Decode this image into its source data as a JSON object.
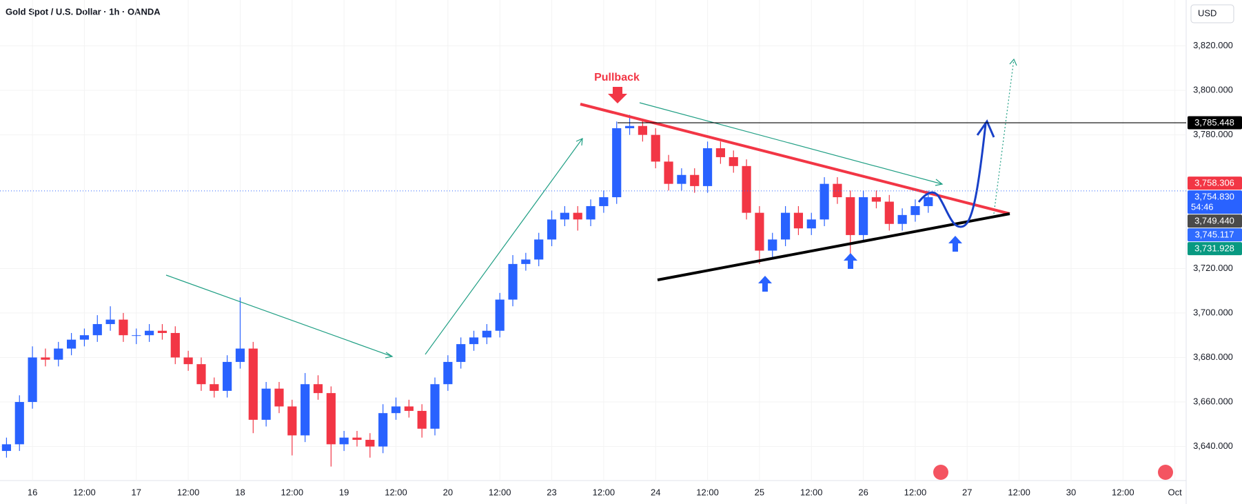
{
  "header": {
    "title": "Gold Spot / U.S. Dollar · 1h · OANDA",
    "currency": "USD"
  },
  "chart_data": {
    "type": "candlestick",
    "annotation": "Pullback",
    "countdown": "54:46",
    "up_color": "#2962ff",
    "down_color": "#f23645",
    "x": [
      -6,
      -3,
      0,
      3,
      6,
      9,
      12,
      15,
      18,
      21,
      24,
      27,
      30,
      33,
      36,
      39,
      42,
      45,
      48,
      51,
      54,
      57,
      60,
      63,
      66,
      69,
      72,
      75,
      78,
      81,
      84,
      87,
      90,
      93,
      96,
      99,
      102,
      105,
      108,
      111,
      114,
      117,
      120,
      123,
      126,
      129,
      132,
      135,
      138,
      141,
      144,
      147,
      150,
      153,
      156,
      159,
      162,
      165,
      168,
      171,
      174,
      177,
      180,
      183,
      186,
      189,
      192,
      195,
      198,
      201,
      204,
      207
    ],
    "open": [
      3638,
      3641,
      3660,
      3680,
      3679,
      3684,
      3688,
      3690,
      3695,
      3697,
      3690,
      3690,
      3692,
      3691,
      3680,
      3677,
      3668,
      3665,
      3678,
      3684,
      3652,
      3666,
      3658,
      3645,
      3668,
      3664,
      3641,
      3644,
      3643,
      3640,
      3655,
      3658,
      3656,
      3648,
      3668,
      3678,
      3686,
      3689,
      3692,
      3706,
      3722,
      3724,
      3733,
      3742,
      3745,
      3742,
      3748,
      3752,
      3783,
      3784,
      3780,
      3768,
      3758,
      3762,
      3757,
      3774,
      3770,
      3766,
      3745,
      3728,
      3733,
      3745,
      3738,
      3742,
      3758,
      3752,
      3735,
      3752,
      3750,
      3740,
      3744,
      3748
    ],
    "high": [
      3644,
      3663,
      3685,
      3684,
      3687,
      3691,
      3693,
      3699,
      3703,
      3700,
      3693,
      3695,
      3695,
      3694,
      3683,
      3680,
      3671,
      3681,
      3707,
      3687,
      3669,
      3669,
      3661,
      3673,
      3672,
      3667,
      3647,
      3647,
      3646,
      3659,
      3662,
      3661,
      3659,
      3671,
      3681,
      3689,
      3692,
      3695,
      3709,
      3726,
      3727,
      3736,
      3746,
      3748,
      3748,
      3751,
      3755,
      3786,
      3789,
      3787,
      3783,
      3771,
      3765,
      3765,
      3777,
      3777,
      3773,
      3769,
      3748,
      3736,
      3748,
      3748,
      3745,
      3761,
      3761,
      3755,
      3755,
      3755,
      3753,
      3747,
      3751,
      3755
    ],
    "low": [
      3635,
      3638,
      3657,
      3676,
      3676,
      3681,
      3685,
      3687,
      3692,
      3687,
      3686,
      3687,
      3688,
      3677,
      3674,
      3665,
      3662,
      3662,
      3675,
      3646,
      3649,
      3655,
      3636,
      3642,
      3661,
      3631,
      3638,
      3640,
      3635,
      3637,
      3652,
      3653,
      3644,
      3645,
      3665,
      3675,
      3683,
      3686,
      3689,
      3703,
      3719,
      3721,
      3730,
      3739,
      3737,
      3739,
      3745,
      3749,
      3780,
      3777,
      3765,
      3755,
      3755,
      3754,
      3754,
      3767,
      3763,
      3742,
      3722,
      3725,
      3730,
      3735,
      3735,
      3739,
      3749,
      3726,
      3732,
      3747,
      3737,
      3737,
      3741,
      3745
    ],
    "close": [
      3641,
      3660,
      3680,
      3679,
      3684,
      3688,
      3690,
      3695,
      3697,
      3690,
      3690,
      3692,
      3691,
      3680,
      3677,
      3668,
      3665,
      3678,
      3684,
      3652,
      3666,
      3658,
      3645,
      3668,
      3664,
      3641,
      3644,
      3643,
      3640,
      3655,
      3658,
      3656,
      3648,
      3668,
      3678,
      3686,
      3689,
      3692,
      3706,
      3722,
      3724,
      3733,
      3742,
      3745,
      3742,
      3748,
      3752,
      3783,
      3784,
      3780,
      3768,
      3758,
      3762,
      3757,
      3774,
      3770,
      3766,
      3745,
      3728,
      3733,
      3745,
      3738,
      3742,
      3758,
      3752,
      3735,
      3752,
      3750,
      3740,
      3744,
      3748,
      3752
    ],
    "xlim": [
      -7.5,
      266.6
    ],
    "ylim": [
      3624.7,
      3840.6
    ],
    "xticks": [
      {
        "value": 0,
        "label": "16"
      },
      {
        "value": 12,
        "label": "12:00"
      },
      {
        "value": 24,
        "label": "17"
      },
      {
        "value": 36,
        "label": "12:00"
      },
      {
        "value": 48,
        "label": "18"
      },
      {
        "value": 60,
        "label": "12:00"
      },
      {
        "value": 72,
        "label": "19"
      },
      {
        "value": 84,
        "label": "12:00"
      },
      {
        "value": 96,
        "label": "20"
      },
      {
        "value": 108,
        "label": "12:00"
      },
      {
        "value": 120,
        "label": "23"
      },
      {
        "value": 132,
        "label": "12:00"
      },
      {
        "value": 144,
        "label": "24"
      },
      {
        "value": 156,
        "label": "12:00"
      },
      {
        "value": 168,
        "label": "25"
      },
      {
        "value": 180,
        "label": "12:00"
      },
      {
        "value": 192,
        "label": "26"
      },
      {
        "value": 204,
        "label": "12:00"
      },
      {
        "value": 216,
        "label": "27"
      },
      {
        "value": 228,
        "label": "12:00"
      },
      {
        "value": 240,
        "label": "30"
      },
      {
        "value": 252,
        "label": "12:00"
      },
      {
        "value": 264,
        "label": "Oct"
      }
    ],
    "yticks": [
      {
        "value": 3640,
        "label": "3,640.000"
      },
      {
        "value": 3660,
        "label": "3,660.000"
      },
      {
        "value": 3680,
        "label": "3,680.000"
      },
      {
        "value": 3700,
        "label": "3,700.000"
      },
      {
        "value": 3720,
        "label": "3,720.000"
      },
      {
        "value": 3780,
        "label": "3,780.000"
      },
      {
        "value": 3800,
        "label": "3,800.000"
      },
      {
        "value": 3820,
        "label": "3,820.000"
      }
    ],
    "price_labels": [
      {
        "value": 3785.448,
        "label": "3,785.448",
        "color": "#000000"
      },
      {
        "value": 3758.306,
        "label": "3,758.306",
        "color": "#f23645"
      },
      {
        "value": 3754.83,
        "label": "3,754.830",
        "color": "#2962ff"
      },
      {
        "value": 3749.44,
        "label": "3,749.440",
        "color": "#4a4a4a"
      },
      {
        "value": 3745.117,
        "label": "3,745.117",
        "color": "#2f6bff"
      },
      {
        "value": 3731.928,
        "label": "3,731.928",
        "color": "#089981"
      }
    ]
  }
}
